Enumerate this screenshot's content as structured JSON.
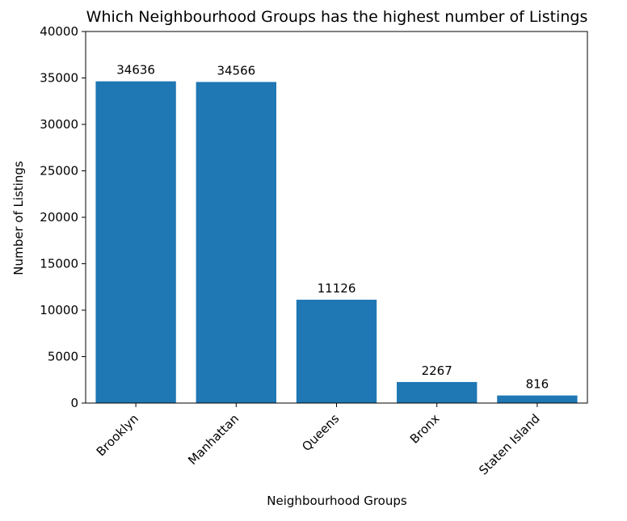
{
  "chart_data": {
    "type": "bar",
    "title": "Which Neighbourhood Groups has the highest number of Listings",
    "xlabel": "Neighbourhood Groups",
    "ylabel": "Number of Listings",
    "categories": [
      "Brooklyn",
      "Manhattan",
      "Queens",
      "Bronx",
      "Staten Island"
    ],
    "values": [
      34636,
      34566,
      11126,
      2267,
      816
    ],
    "ylim": [
      0,
      40000
    ],
    "yticks": [
      0,
      5000,
      10000,
      15000,
      20000,
      25000,
      30000,
      35000,
      40000
    ],
    "data_labels": [
      "34636",
      "34566",
      "11126",
      "2267",
      "816"
    ],
    "bar_color": "#1f77b4",
    "grid": false,
    "legend": "none",
    "x_tick_rotation": "45 degrees"
  }
}
